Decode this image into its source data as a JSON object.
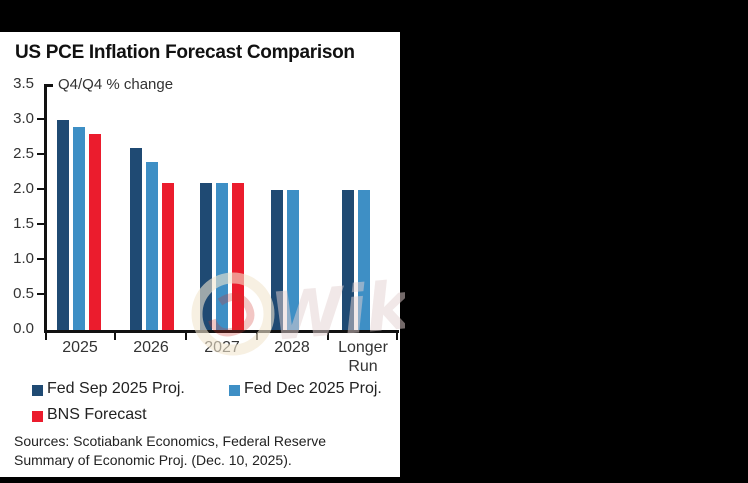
{
  "header": {
    "title": "US PCE Inflation Forecast Comparison"
  },
  "chart_data": {
    "type": "bar",
    "title": "US PCE Inflation Forecast Comparison",
    "annotation": "Q4/Q4 % change",
    "categories": [
      "2025",
      "2026",
      "2027",
      "2028",
      "Longer Run"
    ],
    "series": [
      {
        "name": "Fed Sep 2025 Proj.",
        "color": "#1f4a73",
        "values": [
          3.0,
          2.6,
          2.1,
          2.0,
          2.0
        ]
      },
      {
        "name": "Fed Dec 2025 Proj.",
        "color": "#3e8fc5",
        "values": [
          2.9,
          2.4,
          2.1,
          2.0,
          2.0
        ]
      },
      {
        "name": "BNS Forecast",
        "color": "#eb1c2d",
        "values": [
          2.8,
          2.1,
          2.1,
          null,
          null
        ]
      }
    ],
    "ylim": [
      0.0,
      3.5
    ],
    "ytick_step": 0.5,
    "ytick_labels": [
      "3.5",
      "3.0",
      "2.5",
      "2.0",
      "1.5",
      "1.0",
      "0.5",
      "0.0"
    ],
    "grid": false,
    "legend_position": "bottom-left"
  },
  "sources": {
    "line1": "Sources: Scotiabank Economics, Federal Reserve",
    "line2": "Summary of Economic Proj. (Dec. 10, 2025)."
  },
  "watermark": {
    "text": "Wik"
  },
  "colors": {
    "background": "#000000",
    "panel": "#ffffff",
    "axis": "#111111",
    "text": "#333333"
  }
}
